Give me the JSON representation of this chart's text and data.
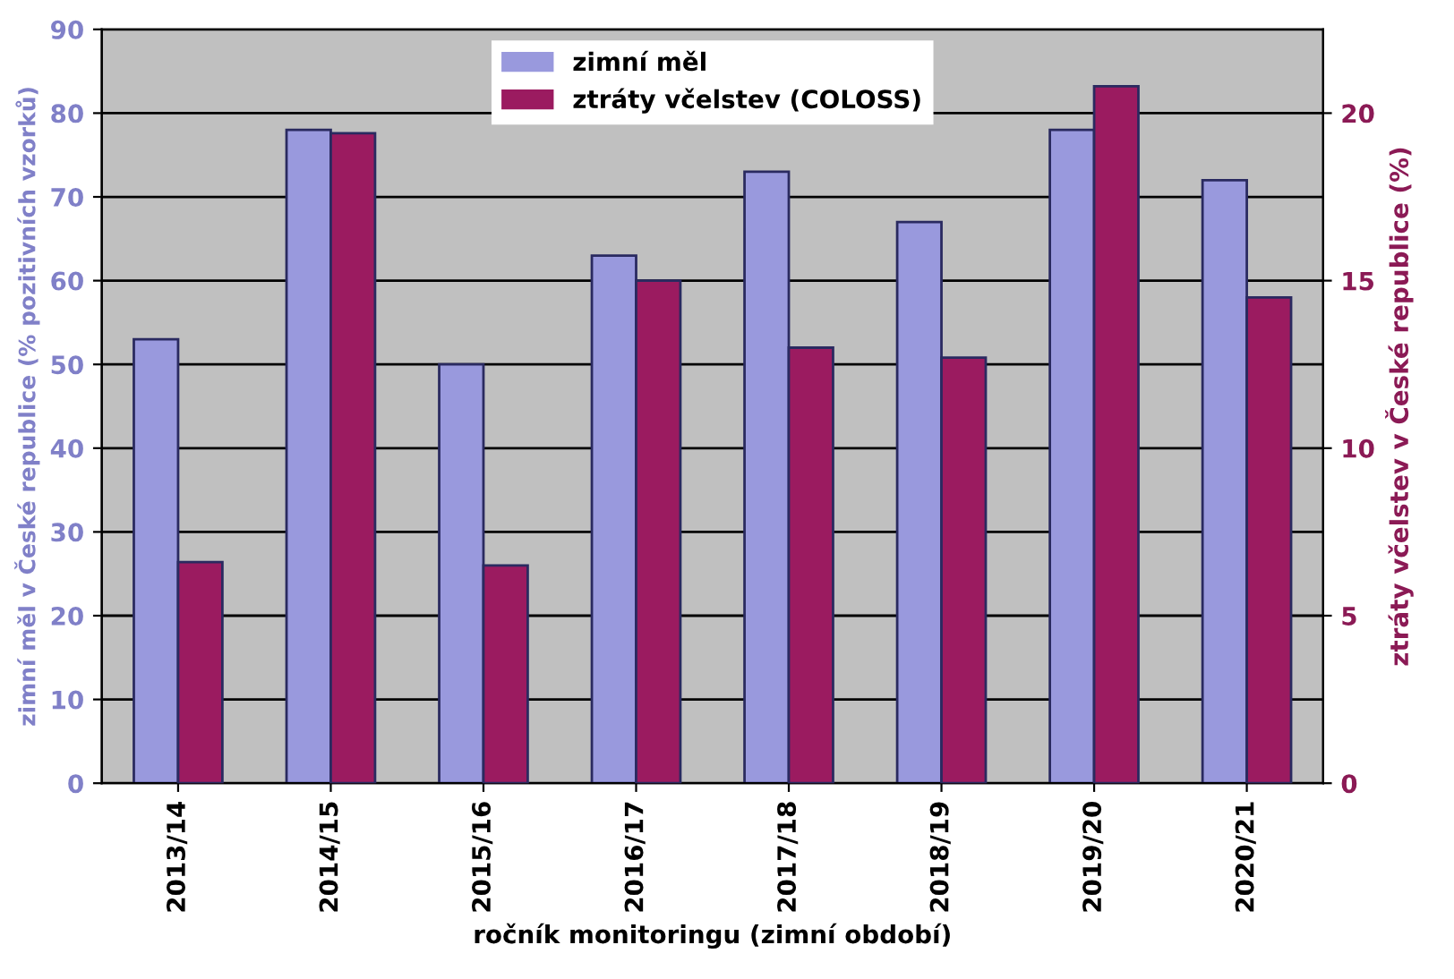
{
  "chart_data": {
    "type": "bar",
    "xlabel": "ročník monitoringu (zimní období)",
    "ylabel": "zimní měl v České republice (% pozitivních vzorků)",
    "y2label": "ztráty včelstev v České republice (%)",
    "categories": [
      "2013/14",
      "2014/15",
      "2015/16",
      "2016/17",
      "2017/18",
      "2018/19",
      "2019/20",
      "2020/21"
    ],
    "series": [
      {
        "name": "zimní měl",
        "color": "#9999dd",
        "values": [
          53,
          78,
          50,
          63,
          73,
          67,
          78,
          72
        ]
      },
      {
        "name": "ztráty včelstev (COLOSS)",
        "color": "#9b1b60",
        "axis": "y2",
        "values": [
          6.6,
          19.4,
          6.5,
          15,
          13,
          12.7,
          20.8,
          14.5
        ]
      }
    ],
    "ylim": [
      0,
      90
    ],
    "yticks": [
      0,
      10,
      20,
      30,
      40,
      50,
      60,
      70,
      80,
      90
    ],
    "y2lim": [
      0,
      22.5
    ],
    "y2ticks": [
      0,
      5,
      10,
      15,
      20
    ],
    "grid": "y",
    "legend": "top"
  }
}
